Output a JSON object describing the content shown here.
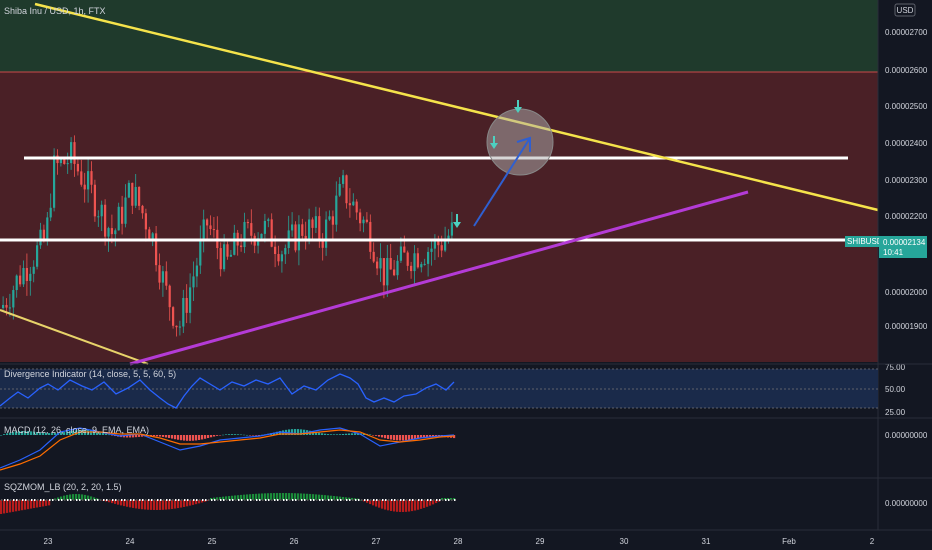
{
  "header": {
    "title": "Shiba Inu / USD, 1h, FTX",
    "currency_button": "USD"
  },
  "colors": {
    "background": "#131722",
    "up_candle": "#26a69a",
    "down_candle": "#ef5350",
    "resistance_zone": "#4a2026",
    "upper_zone": "#1f3a2c",
    "yellow_line": "#f5e34b",
    "magenta_line": "#b43bd6",
    "white_line": "#ffffff",
    "arrow_blue": "#2f5fd0",
    "divergence_line": "#2962ff",
    "macd_line": "#2962ff",
    "signal_line": "#ff6d00"
  },
  "price_tag": {
    "symbol": "SHIBUSD",
    "price": "0.00002134",
    "countdown": "10:41"
  },
  "panes": {
    "divergence": {
      "label": "Divergence Indicator (14, close, 5, 5, 60, 5)",
      "ticks": [
        "75.00",
        "50.00",
        "25.00"
      ]
    },
    "macd": {
      "label": "MACD (12, 26, close, 9, EMA, EMA)",
      "tick": "0.00000000"
    },
    "sqzmom": {
      "label": "SQZMOM_LB (20, 2, 20, 1.5)",
      "tick": "0.00000000"
    }
  },
  "chart_data": {
    "type": "candlestick",
    "title": "Shiba Inu / USD, 1h, FTX",
    "y_axis_ticks": [
      "0.00002700",
      "0.00002600",
      "0.00002500",
      "0.00002400",
      "0.00002300",
      "0.00002200",
      "0.00002000",
      "0.00001900"
    ],
    "x_axis_ticks": [
      "23",
      "24",
      "25",
      "26",
      "27",
      "28",
      "29",
      "30",
      "31",
      "Feb",
      "2"
    ],
    "ylim": [
      1.8e-05,
      2.74e-05
    ],
    "last_price": 2.134e-05,
    "zones": [
      {
        "from": 1.81e-05,
        "to": 2.6e-05,
        "kind": "resistance"
      },
      {
        "from": 2.6e-05,
        "to": 2.74e-05,
        "kind": "upper"
      }
    ],
    "horizontal_levels": [
      2.357e-05,
      2.14e-05
    ],
    "trendlines": {
      "yellow_descending": [
        [
          22.6,
          2.76e-05
        ],
        [
          32.0,
          2.214e-05
        ]
      ],
      "yellow_lower": [
        [
          22.4,
          1.95e-05
        ],
        [
          24.3,
          1.81e-05
        ]
      ],
      "magenta_ascending": [
        [
          24.05,
          1.81e-05
        ],
        [
          31.4,
          2.264e-05
        ]
      ]
    },
    "forecast_arrow": [
      [
        27.95,
        2.177e-05
      ],
      [
        28.9,
        2.43e-05
      ]
    ],
    "target_circle": {
      "x": 28.8,
      "y": 2.407e-05
    },
    "signal_arrows_down": [
      [
        27.95,
        2.207e-05
      ],
      [
        28.78,
        2.538e-05
      ],
      [
        28.38,
        2.408e-05
      ]
    ],
    "sample_closes": [
      1.95e-05,
      2.32e-05,
      2.26e-05,
      2.18e-05,
      1.96e-05,
      2.05e-05,
      2.16e-05,
      2.1e-05,
      2.23e-05,
      2.14e-05,
      2.03e-05,
      2.13e-05,
      2.21e-05
    ]
  }
}
